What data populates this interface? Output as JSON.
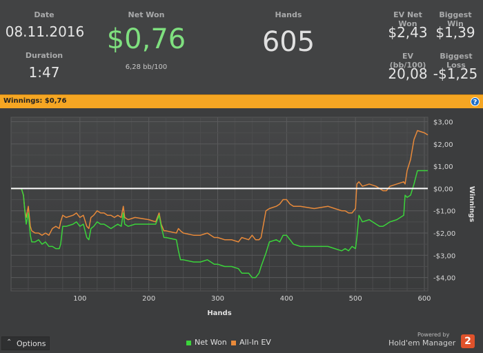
{
  "summary": {
    "date_label": "Date",
    "date_value": "08.11.2016",
    "duration_label": "Duration",
    "duration_value": "1:47",
    "net_won_label": "Net Won",
    "net_won_value": "$0,76",
    "net_won_sub": "6,28 bb/100",
    "hands_label": "Hands",
    "hands_value": "605",
    "ev_net_won_label": "EV Net Won",
    "ev_net_won_value": "$2,43",
    "biggest_win_label": "Biggest Win",
    "biggest_win_value": "$1,39",
    "ev_bb100_label": "EV (bb/100)",
    "ev_bb100_value": "20,08",
    "biggest_loss_label": "Biggest Loss",
    "biggest_loss_value": "-$1,25"
  },
  "banner": {
    "text": "Winnings: $0,76",
    "help_icon": "?"
  },
  "colors": {
    "net_won": "#3bd53b",
    "all_in_ev": "#e98a3a",
    "banner": "#f5a623",
    "net_won_value": "#7fe07f"
  },
  "chart_data": {
    "type": "line",
    "xlabel": "Hands",
    "ylabel": "Winnings",
    "xlim": [
      0,
      605
    ],
    "ylim": [
      -4.6,
      3.2
    ],
    "x_ticks": [
      100,
      200,
      300,
      400,
      500,
      600
    ],
    "x_tick_labels": [
      "100",
      "200",
      "300",
      "400",
      "500",
      "600"
    ],
    "y_ticks": [
      3,
      2,
      1,
      0,
      -1,
      -2,
      -3,
      -4
    ],
    "y_tick_labels": [
      "$3,00",
      "$2,00",
      "$1,00",
      "$0,00",
      "-$1,00",
      "-$2,00",
      "-$3,00",
      "-$4,00"
    ],
    "zero_line": true,
    "grid": true,
    "legend_position": "bottom-center",
    "series": [
      {
        "name": "Net Won",
        "color_key": "net_won",
        "x": [
          0,
          15,
          18,
          20,
          22,
          25,
          28,
          30,
          35,
          40,
          45,
          50,
          55,
          60,
          65,
          70,
          72,
          75,
          80,
          90,
          95,
          100,
          105,
          110,
          113,
          116,
          120,
          125,
          130,
          135,
          140,
          145,
          150,
          155,
          160,
          163,
          165,
          170,
          180,
          200,
          210,
          215,
          218,
          222,
          225,
          240,
          243,
          246,
          250,
          265,
          275,
          285,
          295,
          300,
          310,
          320,
          330,
          335,
          345,
          350,
          355,
          360,
          363,
          370,
          375,
          385,
          390,
          395,
          400,
          405,
          410,
          420,
          440,
          460,
          470,
          480,
          485,
          490,
          495,
          500,
          502,
          505,
          510,
          520,
          530,
          535,
          540,
          545,
          550,
          560,
          570,
          572,
          575,
          580,
          585,
          590,
          600,
          605
        ],
        "y": [
          0,
          0,
          -0.3,
          -1.0,
          -1.6,
          -1.1,
          -2.1,
          -2.4,
          -2.4,
          -2.3,
          -2.5,
          -2.4,
          -2.6,
          -2.6,
          -2.7,
          -2.7,
          -2.5,
          -1.7,
          -1.7,
          -1.6,
          -1.5,
          -1.7,
          -1.6,
          -2.2,
          -2.3,
          -1.8,
          -1.7,
          -1.5,
          -1.6,
          -1.6,
          -1.7,
          -1.8,
          -1.7,
          -1.6,
          -1.7,
          -1.1,
          -1.6,
          -1.7,
          -1.6,
          -1.6,
          -1.6,
          -1.2,
          -1.7,
          -2.2,
          -2.2,
          -2.3,
          -2.8,
          -3.2,
          -3.2,
          -3.3,
          -3.3,
          -3.2,
          -3.4,
          -3.4,
          -3.5,
          -3.5,
          -3.6,
          -3.8,
          -3.8,
          -4.0,
          -4.0,
          -3.8,
          -3.5,
          -2.9,
          -2.4,
          -2.3,
          -2.4,
          -2.1,
          -2.1,
          -2.3,
          -2.5,
          -2.6,
          -2.6,
          -2.6,
          -2.7,
          -2.8,
          -2.7,
          -2.8,
          -2.6,
          -2.7,
          -2.2,
          -1.2,
          -1.5,
          -1.4,
          -1.6,
          -1.7,
          -1.7,
          -1.6,
          -1.5,
          -1.4,
          -1.2,
          -0.3,
          -0.4,
          -0.3,
          0.2,
          0.8,
          0.8,
          0.8
        ]
      },
      {
        "name": "All-In EV",
        "color_key": "all_in_ev",
        "x": [
          0,
          15,
          18,
          20,
          22,
          25,
          28,
          30,
          35,
          40,
          45,
          50,
          55,
          60,
          65,
          70,
          72,
          75,
          80,
          90,
          95,
          100,
          105,
          110,
          113,
          116,
          120,
          125,
          130,
          135,
          140,
          145,
          150,
          155,
          160,
          163,
          165,
          170,
          180,
          200,
          210,
          215,
          218,
          222,
          225,
          240,
          243,
          246,
          250,
          265,
          275,
          285,
          295,
          300,
          310,
          320,
          330,
          335,
          345,
          350,
          355,
          360,
          363,
          370,
          375,
          385,
          390,
          395,
          400,
          405,
          410,
          420,
          440,
          460,
          470,
          480,
          485,
          490,
          495,
          500,
          502,
          505,
          510,
          520,
          530,
          535,
          540,
          545,
          550,
          560,
          570,
          572,
          575,
          580,
          585,
          590,
          600,
          605
        ],
        "y": [
          0,
          0,
          -0.3,
          -1.0,
          -1.3,
          -0.8,
          -1.7,
          -1.9,
          -2.0,
          -2.0,
          -2.1,
          -2.0,
          -2.1,
          -1.8,
          -1.7,
          -1.8,
          -1.5,
          -1.2,
          -1.3,
          -1.2,
          -1.1,
          -1.3,
          -1.2,
          -1.7,
          -1.8,
          -1.3,
          -1.2,
          -1.0,
          -1.1,
          -1.1,
          -1.2,
          -1.2,
          -1.3,
          -1.2,
          -1.3,
          -0.8,
          -1.3,
          -1.4,
          -1.3,
          -1.4,
          -1.5,
          -1.1,
          -1.6,
          -1.9,
          -1.9,
          -2.0,
          -1.8,
          -1.9,
          -2.0,
          -2.1,
          -2.1,
          -2.0,
          -2.2,
          -2.2,
          -2.3,
          -2.3,
          -2.4,
          -2.2,
          -2.3,
          -2.1,
          -2.3,
          -2.3,
          -2.2,
          -1.0,
          -0.9,
          -0.8,
          -0.7,
          -0.5,
          -0.5,
          -0.7,
          -0.8,
          -0.8,
          -0.9,
          -0.8,
          -0.9,
          -1.0,
          -1.0,
          -1.1,
          -1.1,
          -0.9,
          0.2,
          0.3,
          0.1,
          0.2,
          0.1,
          0.0,
          -0.1,
          -0.1,
          0.1,
          0.2,
          0.3,
          0.2,
          0.8,
          1.3,
          2.2,
          2.6,
          2.5,
          2.4
        ]
      }
    ]
  },
  "footer": {
    "options_label": "Options",
    "powered_by": "Powered by",
    "brand": "Hold'em Manager",
    "brand_badge": "2"
  }
}
